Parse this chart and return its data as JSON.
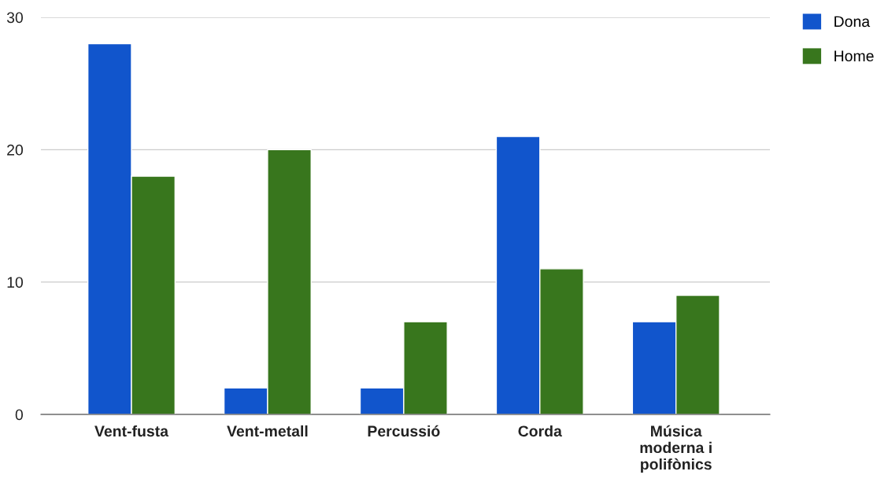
{
  "chart_data": {
    "type": "bar",
    "categories": [
      "Vent-fusta",
      "Vent-metall",
      "Percussió",
      "Corda",
      "Música\nmoderna i\npolifònics"
    ],
    "series": [
      {
        "name": "Dona",
        "color": "#1155cc",
        "values": [
          28,
          2,
          2,
          21,
          7
        ]
      },
      {
        "name": "Home",
        "color": "#38761d",
        "values": [
          18,
          20,
          7,
          11,
          9
        ]
      }
    ],
    "ylim": [
      0,
      30
    ],
    "yticks": [
      0,
      10,
      20,
      30
    ],
    "grid": "y",
    "legend": "top right"
  }
}
